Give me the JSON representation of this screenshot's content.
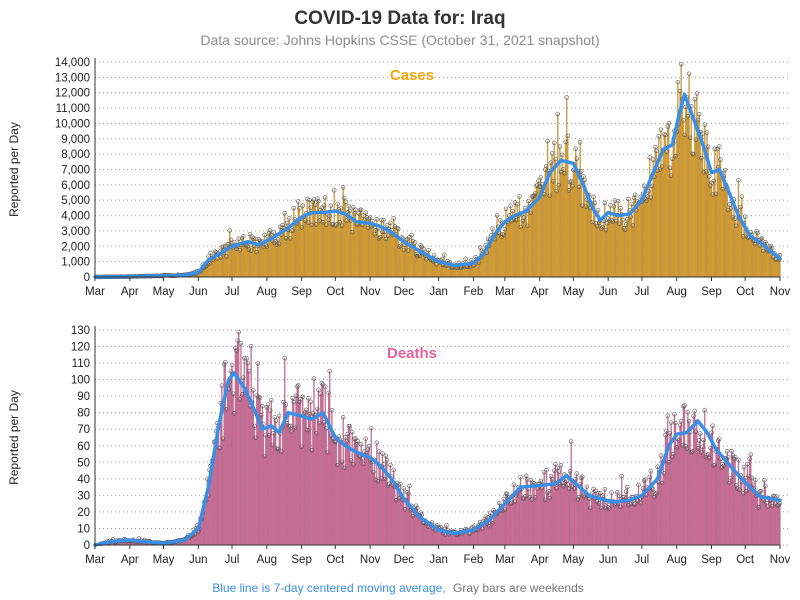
{
  "title": "COVID-19 Data for: Iraq",
  "subtitle": "Data source: Johns Hopkins CSSE (October 31, 2021 snapshot)",
  "footnote": {
    "blue_part": "Blue line is 7-day centered moving average,",
    "gray_part": "Gray bars are weekends"
  },
  "colors": {
    "cases_bar": "#f5a40c",
    "deaths_bar": "#e8609c",
    "moving_average": "#3a8ee6",
    "cases_title": "#f5a40c",
    "deaths_title": "#e8609c",
    "footnote_blue": "#3a8ee6",
    "footnote_gray": "#777777"
  },
  "chart_data": [
    {
      "type": "bar",
      "panel": "Cases",
      "title": "Cases",
      "ylabel": "Reported per Day",
      "ylim": [
        0,
        14000
      ],
      "yticks": [
        "0",
        "1,000",
        "2,000",
        "3,000",
        "4,000",
        "5,000",
        "6,000",
        "7,000",
        "8,000",
        "9,000",
        "10,000",
        "11,000",
        "12,000",
        "13,000",
        "14,000"
      ],
      "xticks": [
        "Mar",
        "Apr",
        "May",
        "Jun",
        "Jul",
        "Aug",
        "Sep",
        "Oct",
        "Nov",
        "Dec",
        "Jan",
        "Feb",
        "Mar",
        "Apr",
        "May",
        "Jun",
        "Jul",
        "Aug",
        "Sep",
        "Oct",
        "Nov"
      ],
      "grid": "horizontal dotted",
      "series_style": "daily bars with 7-day moving average line",
      "x_start_date": "2020-03-01",
      "x_end_date": "2021-11-01",
      "moving_average_keypoints": [
        [
          "2020-03-01",
          0
        ],
        [
          "2020-04-01",
          30
        ],
        [
          "2020-05-01",
          80
        ],
        [
          "2020-05-20",
          120
        ],
        [
          "2020-06-01",
          300
        ],
        [
          "2020-06-10",
          1100
        ],
        [
          "2020-06-20",
          1500
        ],
        [
          "2020-07-01",
          2000
        ],
        [
          "2020-07-15",
          2300
        ],
        [
          "2020-07-25",
          2100
        ],
        [
          "2020-08-05",
          2500
        ],
        [
          "2020-08-20",
          3200
        ],
        [
          "2020-09-01",
          3900
        ],
        [
          "2020-09-10",
          4200
        ],
        [
          "2020-09-20",
          4200
        ],
        [
          "2020-10-01",
          4300
        ],
        [
          "2020-10-10",
          4100
        ],
        [
          "2020-10-20",
          3600
        ],
        [
          "2020-11-01",
          3500
        ],
        [
          "2020-11-10",
          3300
        ],
        [
          "2020-11-20",
          2900
        ],
        [
          "2020-12-01",
          2300
        ],
        [
          "2020-12-15",
          1700
        ],
        [
          "2021-01-01",
          1000
        ],
        [
          "2021-01-15",
          750
        ],
        [
          "2021-02-01",
          900
        ],
        [
          "2021-02-10",
          1500
        ],
        [
          "2021-02-20",
          2800
        ],
        [
          "2021-03-01",
          3600
        ],
        [
          "2021-03-10",
          4000
        ],
        [
          "2021-03-20",
          4300
        ],
        [
          "2021-04-01",
          5200
        ],
        [
          "2021-04-10",
          6800
        ],
        [
          "2021-04-20",
          7600
        ],
        [
          "2021-05-01",
          7400
        ],
        [
          "2021-05-10",
          6000
        ],
        [
          "2021-05-18",
          4500
        ],
        [
          "2021-05-25",
          3700
        ],
        [
          "2021-06-01",
          4200
        ],
        [
          "2021-06-10",
          4000
        ],
        [
          "2021-06-20",
          4100
        ],
        [
          "2021-07-01",
          5000
        ],
        [
          "2021-07-10",
          6600
        ],
        [
          "2021-07-20",
          8300
        ],
        [
          "2021-07-28",
          8600
        ],
        [
          "2021-08-03",
          10500
        ],
        [
          "2021-08-08",
          11900
        ],
        [
          "2021-08-15",
          10500
        ],
        [
          "2021-08-25",
          8500
        ],
        [
          "2021-09-01",
          6800
        ],
        [
          "2021-09-08",
          7000
        ],
        [
          "2021-09-15",
          5800
        ],
        [
          "2021-09-25",
          4000
        ],
        [
          "2021-10-05",
          2700
        ],
        [
          "2021-10-15",
          2200
        ],
        [
          "2021-10-25",
          1600
        ],
        [
          "2021-11-01",
          1200
        ]
      ]
    },
    {
      "type": "bar",
      "panel": "Deaths",
      "title": "Deaths",
      "ylabel": "Reported per Day",
      "ylim": [
        0,
        130
      ],
      "yticks": [
        "0",
        "10",
        "20",
        "30",
        "40",
        "50",
        "60",
        "70",
        "80",
        "90",
        "100",
        "110",
        "120",
        "130"
      ],
      "xticks": [
        "Mar",
        "Apr",
        "May",
        "Jun",
        "Jul",
        "Aug",
        "Sep",
        "Oct",
        "Nov",
        "Dec",
        "Jan",
        "Feb",
        "Mar",
        "Apr",
        "May",
        "Jun",
        "Jul",
        "Aug",
        "Sep",
        "Oct",
        "Nov"
      ],
      "grid": "horizontal dotted",
      "series_style": "daily bars with 7-day moving average line",
      "x_start_date": "2020-03-01",
      "x_end_date": "2021-11-01",
      "moving_average_keypoints": [
        [
          "2020-03-01",
          0
        ],
        [
          "2020-03-15",
          2
        ],
        [
          "2020-04-01",
          3
        ],
        [
          "2020-04-15",
          2
        ],
        [
          "2020-05-01",
          1
        ],
        [
          "2020-05-20",
          3
        ],
        [
          "2020-06-01",
          10
        ],
        [
          "2020-06-10",
          35
        ],
        [
          "2020-06-20",
          75
        ],
        [
          "2020-06-28",
          100
        ],
        [
          "2020-07-03",
          104
        ],
        [
          "2020-07-12",
          95
        ],
        [
          "2020-07-22",
          80
        ],
        [
          "2020-07-28",
          70
        ],
        [
          "2020-08-05",
          72
        ],
        [
          "2020-08-12",
          68
        ],
        [
          "2020-08-20",
          80
        ],
        [
          "2020-09-01",
          78
        ],
        [
          "2020-09-10",
          76
        ],
        [
          "2020-09-20",
          80
        ],
        [
          "2020-10-01",
          65
        ],
        [
          "2020-10-10",
          60
        ],
        [
          "2020-10-20",
          56
        ],
        [
          "2020-11-01",
          53
        ],
        [
          "2020-11-10",
          48
        ],
        [
          "2020-11-20",
          40
        ],
        [
          "2020-12-01",
          28
        ],
        [
          "2020-12-15",
          17
        ],
        [
          "2021-01-01",
          9
        ],
        [
          "2021-01-15",
          7
        ],
        [
          "2021-02-01",
          9
        ],
        [
          "2021-02-15",
          15
        ],
        [
          "2021-03-01",
          25
        ],
        [
          "2021-03-15",
          35
        ],
        [
          "2021-04-01",
          36
        ],
        [
          "2021-04-15",
          37
        ],
        [
          "2021-04-25",
          42
        ],
        [
          "2021-05-05",
          36
        ],
        [
          "2021-05-15",
          30
        ],
        [
          "2021-05-25",
          28
        ],
        [
          "2021-06-05",
          26
        ],
        [
          "2021-06-20",
          27
        ],
        [
          "2021-07-01",
          30
        ],
        [
          "2021-07-15",
          40
        ],
        [
          "2021-07-25",
          60
        ],
        [
          "2021-08-01",
          67
        ],
        [
          "2021-08-10",
          68
        ],
        [
          "2021-08-20",
          75
        ],
        [
          "2021-08-28",
          68
        ],
        [
          "2021-09-05",
          58
        ],
        [
          "2021-09-15",
          50
        ],
        [
          "2021-09-25",
          42
        ],
        [
          "2021-10-05",
          35
        ],
        [
          "2021-10-15",
          29
        ],
        [
          "2021-10-25",
          28
        ],
        [
          "2021-11-01",
          27
        ]
      ]
    }
  ]
}
